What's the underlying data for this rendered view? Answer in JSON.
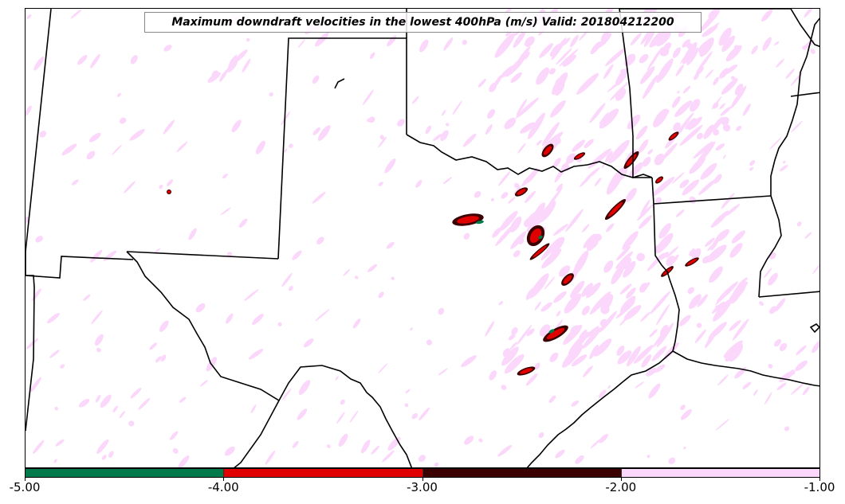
{
  "title": "Maximum downdraft velocities in the lowest 400hPa (m/s) Valid: 201804212200",
  "colorbar": {
    "segments": [
      {
        "range": "-5.00 to -4.00",
        "color": "#007a4a"
      },
      {
        "range": "-4.00 to -3.00",
        "color": "#e00000"
      },
      {
        "range": "-3.00 to -2.00",
        "color": "#3d0000"
      },
      {
        "range": "-2.00 to -1.00",
        "color": "#fbd8fb"
      }
    ],
    "ticks": [
      "-5.00",
      "-4.00",
      "-3.00",
      "-2.00",
      "-1.00"
    ]
  },
  "colors": {
    "border": "#000000",
    "light_pink": "#fbd8fb",
    "dark_red": "#3d0000",
    "red": "#e00000",
    "green": "#007a4a"
  }
}
